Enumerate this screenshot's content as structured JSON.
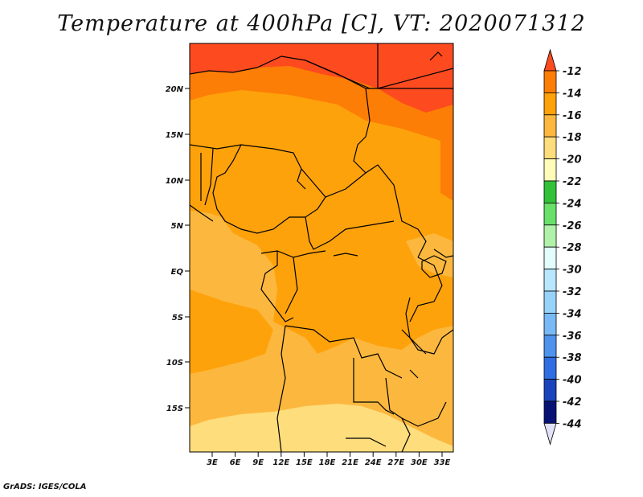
{
  "title": "Temperature at 400hPa [C], VT: 2020071312",
  "credit": "GrADS: IGES/COLA",
  "map": {
    "lat_labels": [
      "20N",
      "15N",
      "10N",
      "5N",
      "EQ",
      "5S",
      "10S",
      "15S"
    ],
    "lon_labels": [
      "3E",
      "6E",
      "9E",
      "12E",
      "15E",
      "18E",
      "21E",
      "24E",
      "27E",
      "30E",
      "33E"
    ]
  },
  "colorbar": {
    "labels": [
      "-12",
      "-14",
      "-16",
      "-18",
      "-20",
      "-22",
      "-24",
      "-26",
      "-28",
      "-30",
      "-32",
      "-34",
      "-36",
      "-38",
      "-40",
      "-42",
      "-44"
    ],
    "colors": [
      "#fd4a1f",
      "#fd7e06",
      "#fea20c",
      "#fcb83e",
      "#fedd7c",
      "#fffcb9",
      "#33c13a",
      "#69e069",
      "#b0f2a9",
      "#e3fdfc",
      "#b8e7fd",
      "#97d2f8",
      "#79b9f6",
      "#4e93ee",
      "#2f6de0",
      "#1a44bb",
      "#081274",
      "#e1e1fa"
    ]
  }
}
